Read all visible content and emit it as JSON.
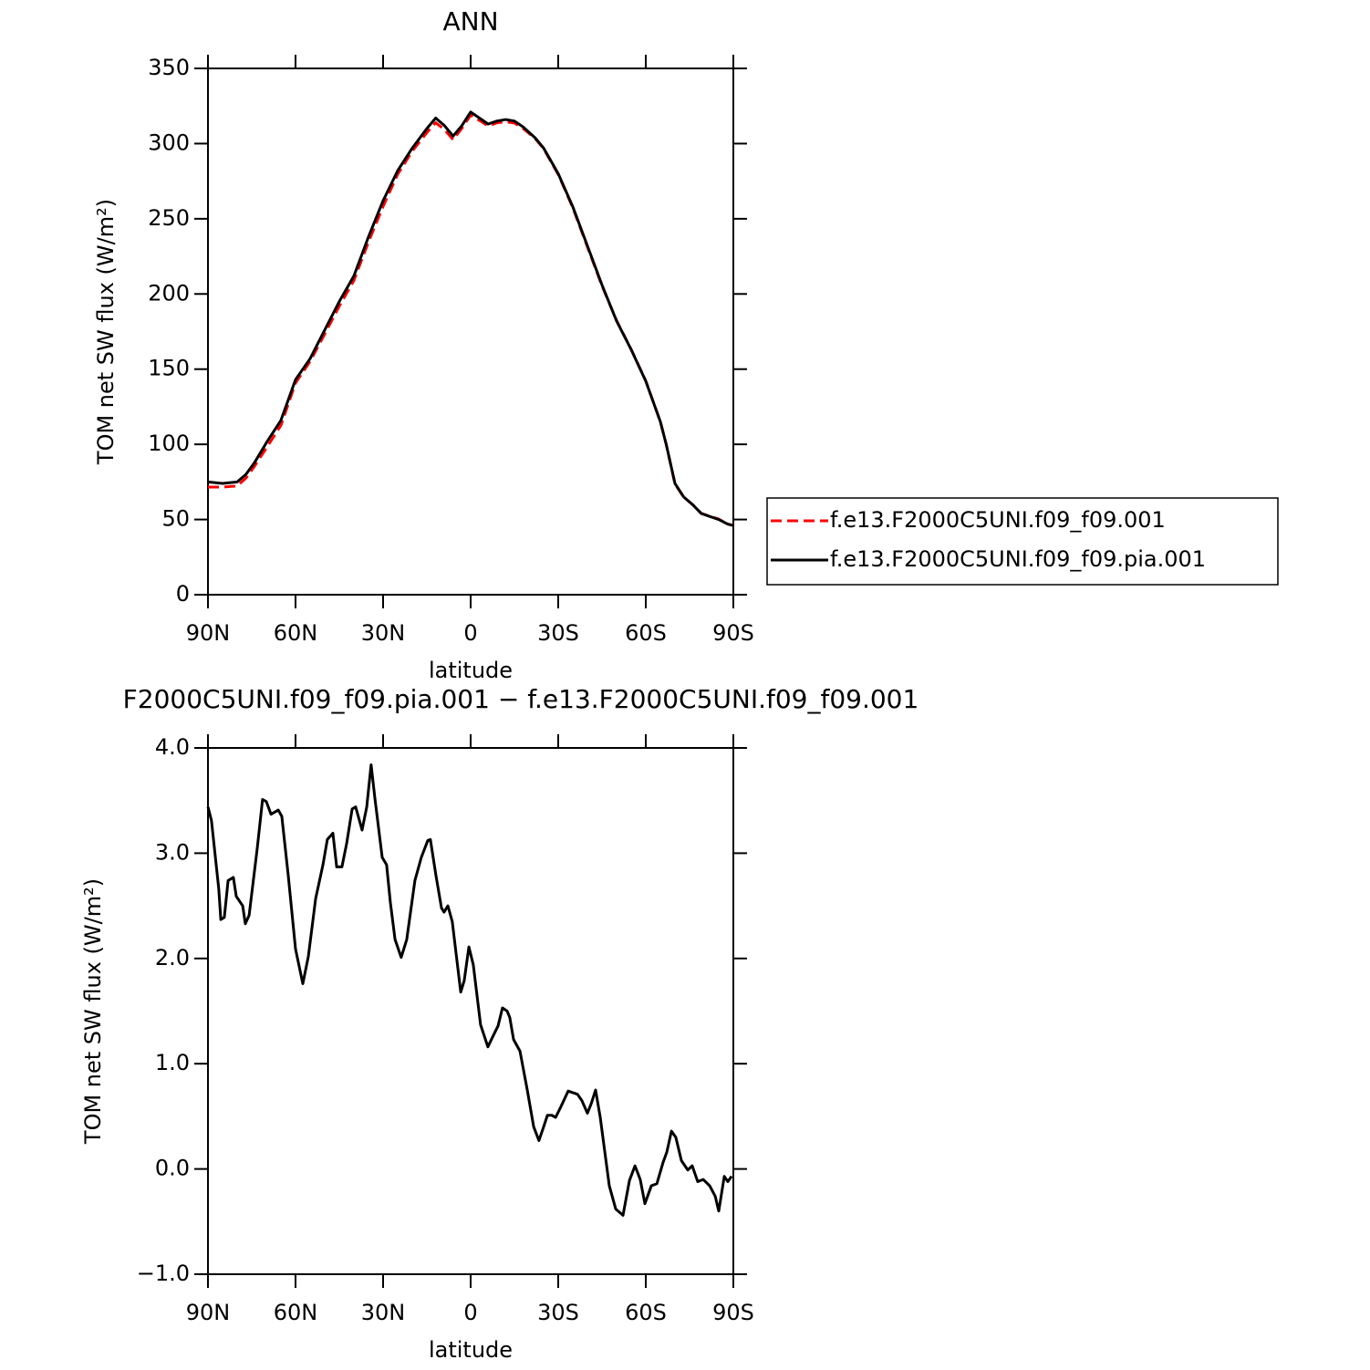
{
  "chart_data": [
    {
      "type": "line",
      "title": "ANN",
      "x_label": "latitude",
      "y_label": "TOM net SW flux (W/m²)",
      "x": [
        90,
        85,
        80,
        77,
        74,
        70,
        65,
        60,
        55,
        50,
        45,
        40,
        35,
        30,
        25,
        20,
        15,
        12,
        9,
        6,
        3,
        0,
        -3,
        -6,
        -9,
        -12,
        -15,
        -18,
        -22,
        -25,
        -30,
        -35,
        -40,
        -45,
        -50,
        -55,
        -60,
        -65,
        -67,
        -70,
        -73,
        -76,
        -79,
        -82,
        -85,
        -88,
        -90
      ],
      "series": [
        {
          "name": "f.e13.F2000C5UNI.f09_f09.001",
          "color": "#ff0000",
          "linestyle": "dashed",
          "values": [
            71.6,
            71.6,
            72.3,
            77.5,
            85.6,
            97.5,
            112.6,
            140.8,
            155.2,
            173.4,
            191.9,
            209,
            234.6,
            258.2,
            279.6,
            295,
            307.3,
            313.9,
            309.4,
            302.6,
            310.2,
            318.9,
            315.4,
            311.7,
            313.8,
            314.5,
            313.7,
            310,
            303.6,
            296.6,
            279.5,
            257.3,
            231.3,
            205.4,
            182.3,
            163.1,
            142.2,
            115.05,
            99.9,
            73.65,
            64.85,
            60,
            54.1,
            52.1,
            50.3,
            47.05,
            46.05
          ]
        },
        {
          "name": "f.e13.F2000C5UNI.f09_f09.pia.001",
          "color": "#000000",
          "linestyle": "solid",
          "values": [
            75,
            74,
            75,
            80,
            88,
            101,
            116,
            143,
            157,
            176,
            195,
            212,
            238,
            262,
            282,
            297,
            310,
            317,
            312,
            305,
            312,
            321,
            317,
            313,
            315,
            316,
            315,
            311,
            304,
            297,
            280,
            258,
            232,
            206,
            182,
            163,
            142,
            115,
            100,
            74,
            65,
            60,
            54,
            52,
            50,
            47,
            46
          ]
        }
      ],
      "xlim": [
        90,
        -90
      ],
      "xticks": [
        {
          "value": 90,
          "label": "90N"
        },
        {
          "value": 60,
          "label": "60N"
        },
        {
          "value": 30,
          "label": "30N"
        },
        0,
        {
          "value": -30,
          "label": "30S"
        },
        {
          "value": -60,
          "label": "60S"
        },
        {
          "value": -90,
          "label": "90S"
        }
      ],
      "ylim": [
        0,
        350
      ],
      "yticks": [
        0,
        50,
        100,
        150,
        200,
        250,
        300,
        350
      ],
      "legend_position": "right"
    },
    {
      "type": "line",
      "title": "F2000C5UNI.f09_f09.pia.001 − f.e13.F2000C5UNI.f09_f09.001",
      "x_label": "latitude",
      "y_label": "TOM net SW flux (W/m²)",
      "x": [
        90,
        88.8,
        86.3,
        85.6,
        84.4,
        83.1,
        81.3,
        80.3,
        78.1,
        77.2,
        75.9,
        73.1,
        71.3,
        70,
        68.4,
        65.9,
        64.7,
        62.5,
        60,
        57.5,
        55.6,
        53.1,
        50.6,
        49.1,
        47.2,
        45.9,
        44.1,
        42.5,
        40.6,
        39.4,
        37.2,
        35.6,
        34.1,
        32.8,
        30.3,
        28.8,
        27.5,
        25.9,
        23.8,
        21.9,
        19.1,
        16.9,
        14.7,
        13.8,
        11.9,
        10,
        9.1,
        7.8,
        6.3,
        3.4,
        2.2,
        0.6,
        -0.9,
        -3.4,
        -5.9,
        -7.8,
        -9.4,
        -10.9,
        -12.5,
        -13.4,
        -14.7,
        -16.9,
        -19.4,
        -21.6,
        -23.4,
        -25,
        -26.3,
        -27.8,
        -29.1,
        -30.9,
        -33.4,
        -36.6,
        -38.1,
        -40,
        -41.3,
        -42.8,
        -44.4,
        -47.5,
        -49.7,
        -52.2,
        -54.4,
        -56.3,
        -58.1,
        -59.7,
        -61.9,
        -63.8,
        -65.9,
        -67.2,
        -68.8,
        -70.3,
        -72.2,
        -74.4,
        -75.9,
        -77.8,
        -79.7,
        -81.9,
        -83.8,
        -85,
        -86.9,
        -88.1,
        -89.4
      ],
      "color": "#000000",
      "values": [
        3.44,
        3.31,
        2.66,
        2.37,
        2.39,
        2.74,
        2.77,
        2.59,
        2.5,
        2.33,
        2.41,
        3.05,
        3.51,
        3.49,
        3.37,
        3.41,
        3.35,
        2.79,
        2.09,
        1.76,
        2.02,
        2.57,
        2.89,
        3.13,
        3.19,
        2.87,
        2.87,
        3.09,
        3.42,
        3.44,
        3.22,
        3.44,
        3.84,
        3.52,
        2.96,
        2.89,
        2.53,
        2.18,
        2.01,
        2.18,
        2.74,
        2.96,
        3.12,
        3.13,
        2.79,
        2.48,
        2.44,
        2.5,
        2.35,
        1.68,
        1.79,
        2.11,
        1.94,
        1.37,
        1.16,
        1.27,
        1.36,
        1.53,
        1.5,
        1.44,
        1.23,
        1.12,
        0.75,
        0.4,
        0.27,
        0.4,
        0.51,
        0.51,
        0.49,
        0.59,
        0.74,
        0.71,
        0.65,
        0.53,
        0.62,
        0.75,
        0.49,
        -0.16,
        -0.38,
        -0.44,
        -0.11,
        0.03,
        -0.1,
        -0.33,
        -0.16,
        -0.14,
        0.06,
        0.16,
        0.36,
        0.3,
        0.08,
        -0.01,
        0.03,
        -0.12,
        -0.1,
        -0.16,
        -0.26,
        -0.4,
        -0.07,
        -0.12,
        -0.07
      ],
      "xlim": [
        90,
        -90
      ],
      "xticks": [
        {
          "value": 90,
          "label": "90N"
        },
        {
          "value": 60,
          "label": "60N"
        },
        {
          "value": 30,
          "label": "30N"
        },
        0,
        {
          "value": -30,
          "label": "30S"
        },
        {
          "value": -60,
          "label": "60S"
        },
        {
          "value": -90,
          "label": "90S"
        }
      ],
      "ylim": [
        -1,
        4
      ],
      "yticks": [
        {
          "value": -1,
          "label": "−1.0"
        },
        {
          "value": 0,
          "label": "0.0"
        },
        {
          "value": 1,
          "label": "1.0"
        },
        {
          "value": 2,
          "label": "2.0"
        },
        {
          "value": 3,
          "label": "3.0"
        },
        {
          "value": 4,
          "label": "4.0"
        }
      ]
    }
  ]
}
